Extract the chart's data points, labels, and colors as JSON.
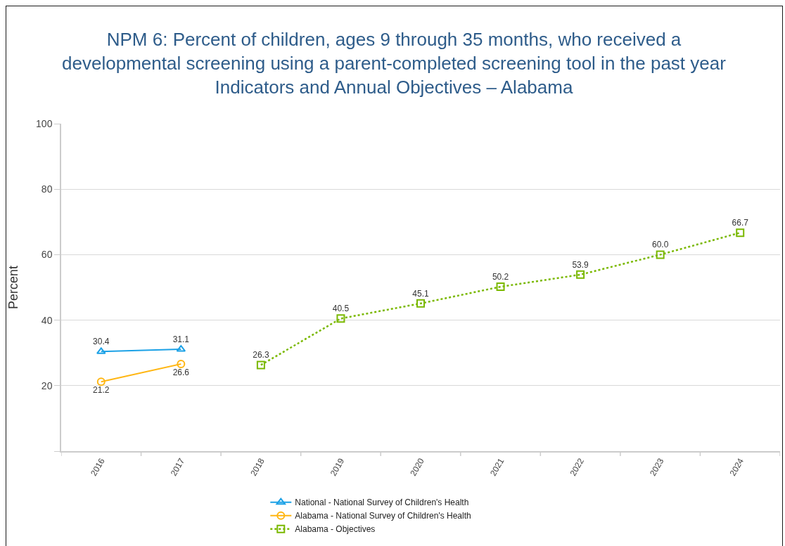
{
  "chart_data": {
    "type": "line",
    "title": "NPM 6: Percent of children, ages 9 through 35 months, who received a developmental screening using a parent-completed screening tool in the past year",
    "subtitle": "Indicators and Annual Objectives – Alabama",
    "ylabel": "Percent",
    "categories": [
      "2016",
      "2017",
      "2018",
      "2019",
      "2020",
      "2021",
      "2022",
      "2023",
      "2024"
    ],
    "series": [
      {
        "name": "National - National Survey of Children's Health",
        "color": "#1ba1e6",
        "marker": "triangle",
        "line_style": "solid",
        "values": [
          30.4,
          31.1,
          null,
          null,
          null,
          null,
          null,
          null,
          null
        ],
        "value_labels": [
          "30.4",
          "31.1",
          null,
          null,
          null,
          null,
          null,
          null,
          null
        ]
      },
      {
        "name": "Alabama - National Survey of Children's Health",
        "color": "#ffb612",
        "marker": "circle",
        "line_style": "solid",
        "values": [
          21.2,
          26.6,
          null,
          null,
          null,
          null,
          null,
          null,
          null
        ],
        "value_labels": [
          "21.2",
          "26.6",
          null,
          null,
          null,
          null,
          null,
          null,
          null
        ]
      },
      {
        "name": "Alabama - Objectives",
        "color": "#7ab800",
        "marker": "square",
        "line_style": "dotted",
        "values": [
          null,
          null,
          26.3,
          40.5,
          45.1,
          50.2,
          53.9,
          60.0,
          66.7
        ],
        "value_labels": [
          null,
          null,
          "26.3",
          "40.5",
          "45.1",
          "50.2",
          "53.9",
          "60.0",
          "66.7"
        ]
      }
    ],
    "ylim": [
      0,
      100
    ],
    "yticks": [
      {
        "value": 0,
        "label": null
      },
      20,
      40,
      60,
      80,
      100
    ],
    "grid": "y",
    "legend": "bottom"
  }
}
